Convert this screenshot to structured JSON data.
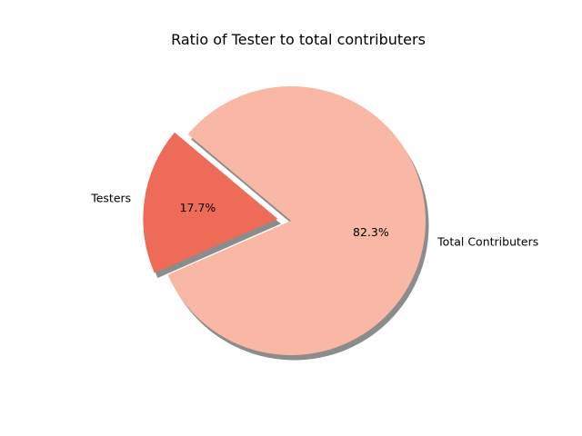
{
  "chart_data": {
    "type": "pie",
    "title": "Ratio of Tester to total contributers",
    "labels": [
      "Testers",
      "Total Contributers"
    ],
    "values": [
      17.7,
      82.3
    ],
    "percent_labels": [
      "17.7%",
      "82.3%"
    ],
    "colors": [
      "#ee6b58",
      "#f8b8a5"
    ],
    "explode": [
      0.1,
      0
    ],
    "shadow": true,
    "shadow_color": "#7f7f7f",
    "start_angle": 140,
    "direction": "counterclockwise"
  }
}
